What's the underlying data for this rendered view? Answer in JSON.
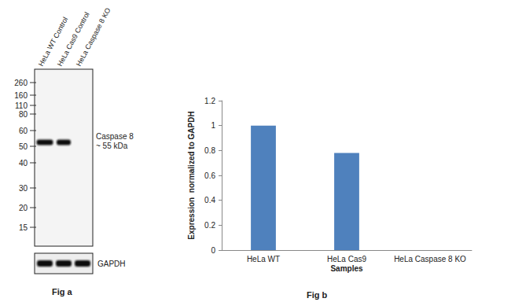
{
  "chart_data": {
    "type": "bar",
    "title": "Fig b",
    "categories": [
      "HeLa WT",
      "HeLa Cas9",
      "HeLa Caspase 8 KO"
    ],
    "values": [
      1,
      0.78,
      0
    ],
    "color": "#4f81bd",
    "x_label": "Samples",
    "y_label": "Expression  normalized to GAPDH",
    "ylim": [
      0,
      1.2
    ],
    "yticks": [
      0,
      0.2,
      0.4,
      0.6,
      0.8,
      1,
      1.2
    ],
    "grid": false
  },
  "blot": {
    "title": "Fig a",
    "lanes": [
      "HeLa WT Control",
      "HeLa Cas9 Control",
      "HeLa Caspase 8 KO"
    ],
    "markers": [
      260,
      160,
      110,
      80,
      60,
      50,
      40,
      30,
      20,
      15
    ],
    "target": {
      "label": [
        "Caspase 8",
        "~ 55 kDa"
      ],
      "bands": [
        true,
        true,
        false
      ]
    },
    "loading_control": {
      "label": "GAPDH",
      "bands": [
        true,
        true,
        true
      ]
    }
  }
}
